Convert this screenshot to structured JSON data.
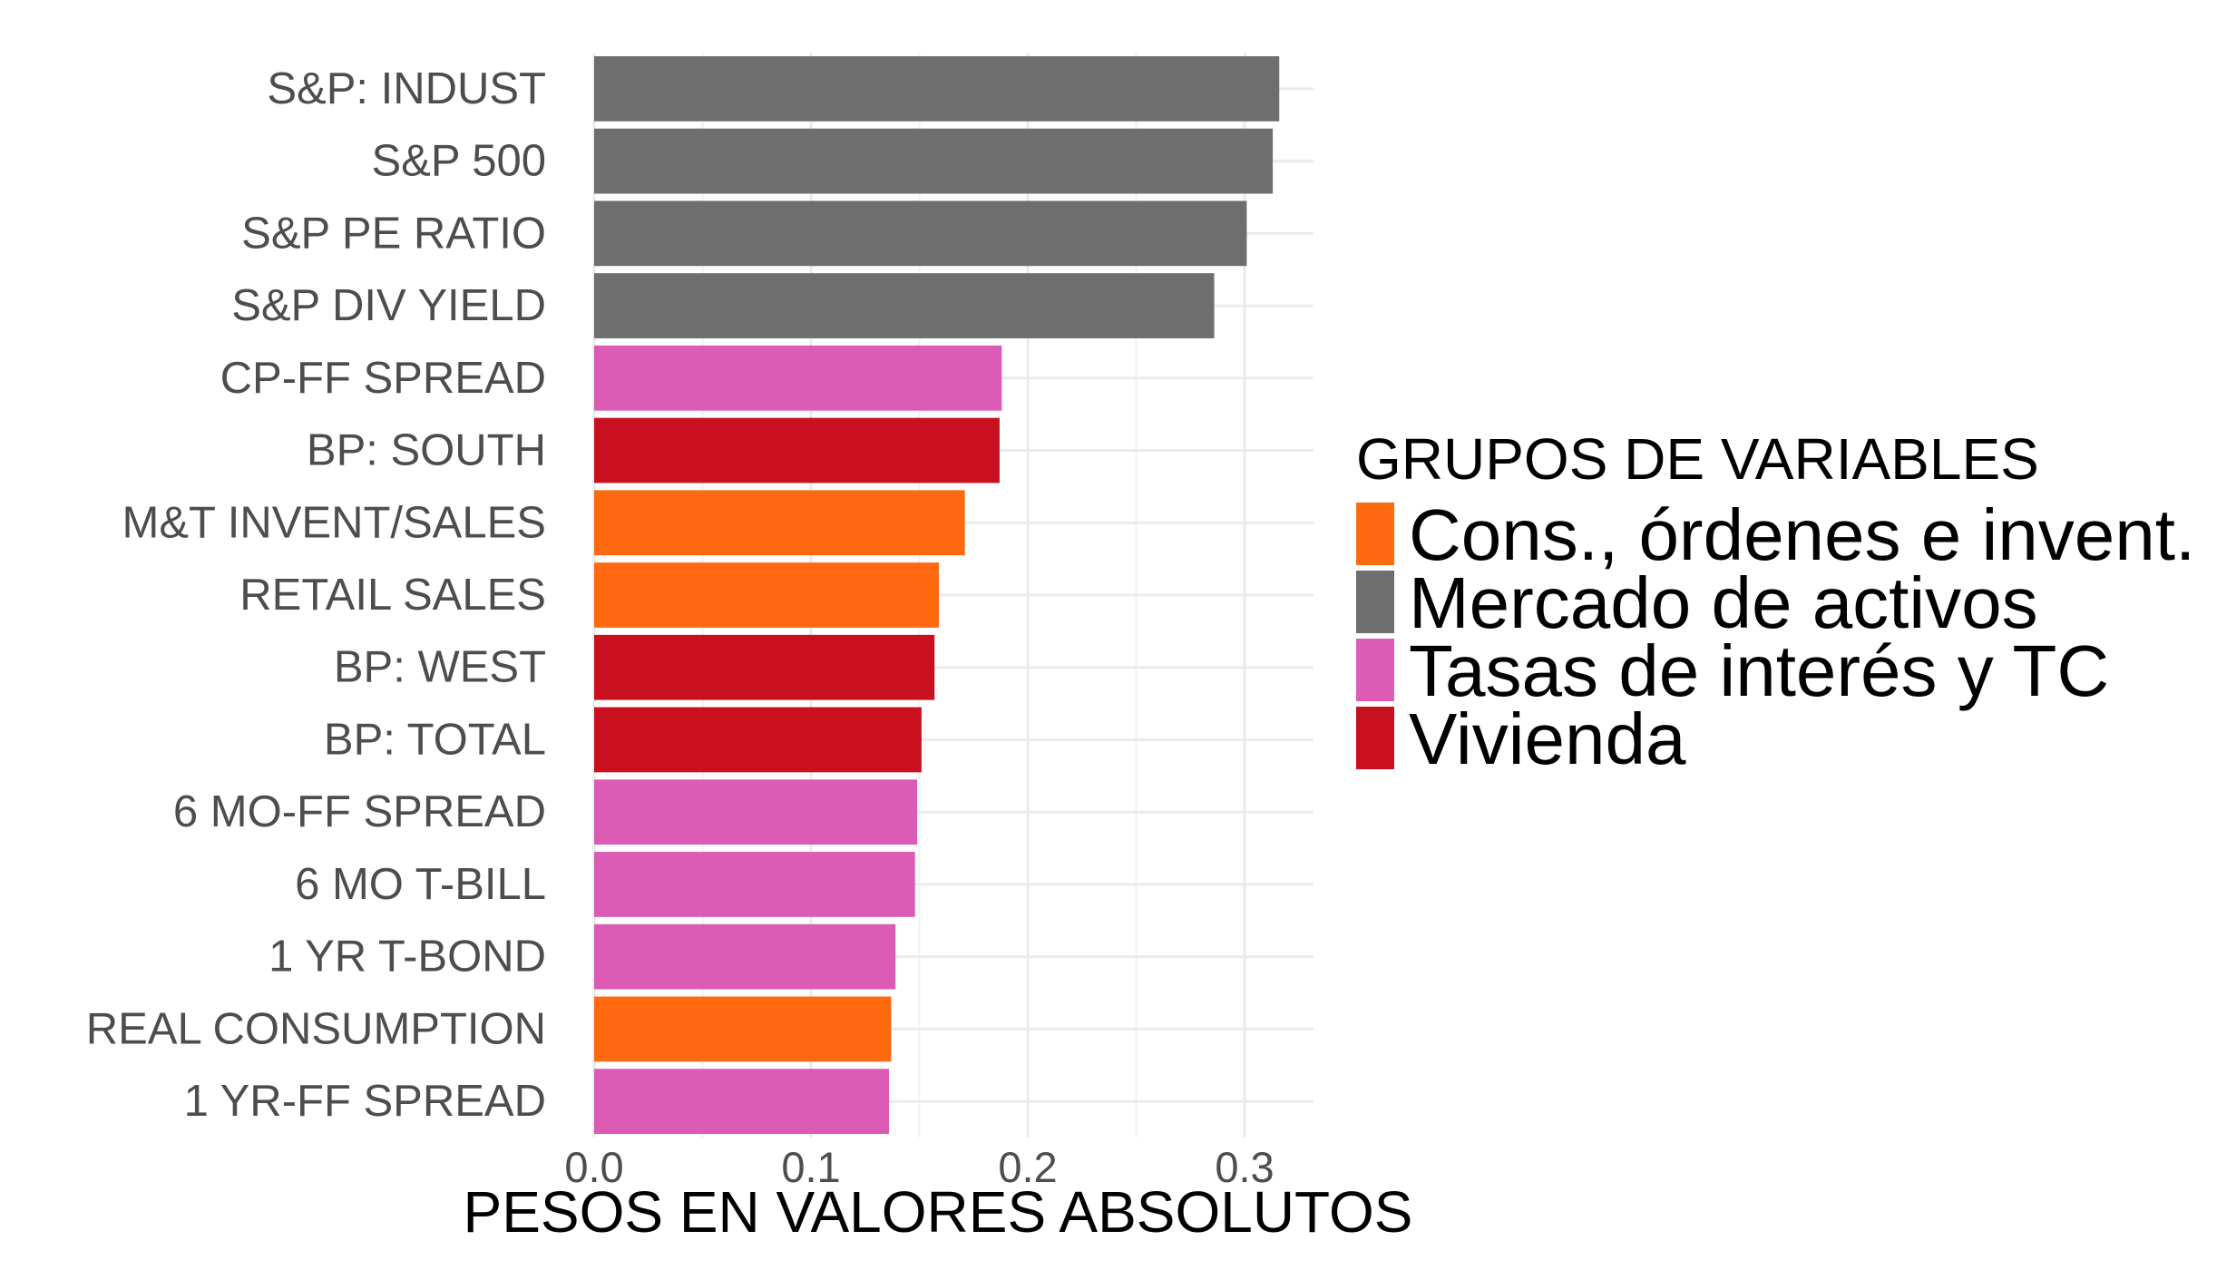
{
  "chart_data": {
    "type": "bar",
    "orientation": "horizontal",
    "title": "",
    "xlabel": "PESOS EN VALORES ABSOLUTOS",
    "ylabel": "",
    "xlim": [
      0,
      0.33
    ],
    "x_ticks": [
      0.0,
      0.1,
      0.2,
      0.3
    ],
    "x_tick_labels": [
      "0.0",
      "0.1",
      "0.2",
      "0.3"
    ],
    "grid": true,
    "legend_position": "right",
    "legend_title": "GRUPOS DE VARIABLES",
    "groups": [
      {
        "name": "Cons., órdenes e invent.",
        "color": "#FF6A10"
      },
      {
        "name": "Mercado de activos",
        "color": "#6E6E6E"
      },
      {
        "name": "Tasas de interés y TC",
        "color": "#DB5BB5"
      },
      {
        "name": "Vivienda",
        "color": "#C8101E"
      }
    ],
    "categories": [
      "S&P: INDUST",
      "S&P 500",
      "S&P PE RATIO",
      "S&P DIV YIELD",
      "CP-FF SPREAD",
      "BP: SOUTH",
      "M&T INVENT/SALES",
      "RETAIL SALES",
      "BP: WEST",
      "BP: TOTAL",
      "6 MO-FF SPREAD",
      "6 MO T-BILL",
      "1 YR T-BOND",
      "REAL CONSUMPTION",
      "1 YR-FF SPREAD"
    ],
    "values": [
      0.316,
      0.313,
      0.301,
      0.286,
      0.188,
      0.187,
      0.171,
      0.159,
      0.157,
      0.151,
      0.149,
      0.148,
      0.139,
      0.137,
      0.136
    ],
    "group_of": [
      "Mercado de activos",
      "Mercado de activos",
      "Mercado de activos",
      "Mercado de activos",
      "Tasas de interés y TC",
      "Vivienda",
      "Cons., órdenes e invent.",
      "Cons., órdenes e invent.",
      "Vivienda",
      "Vivienda",
      "Tasas de interés y TC",
      "Tasas de interés y TC",
      "Tasas de interés y TC",
      "Cons., órdenes e invent.",
      "Tasas de interés y TC"
    ]
  }
}
